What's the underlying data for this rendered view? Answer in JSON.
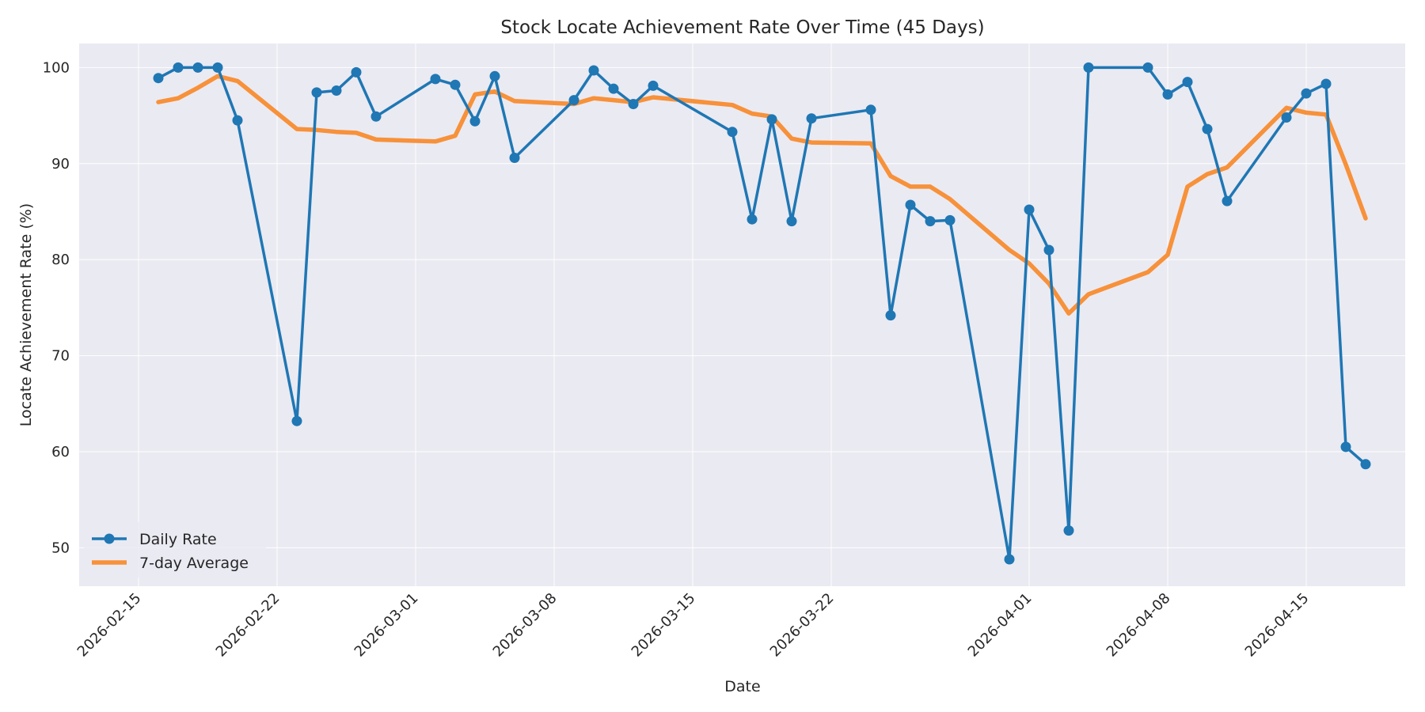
{
  "chart_data": {
    "type": "line",
    "title": "Stock Locate Achievement Rate Over Time (45 Days)",
    "xlabel": "Date",
    "ylabel": "Locate Achievement Rate (%)",
    "xlim": [
      "2026-02-12",
      "2026-04-20"
    ],
    "ylim": [
      46,
      102.5
    ],
    "yticks": [
      50,
      60,
      70,
      80,
      90,
      100
    ],
    "xticks": [
      "2026-02-15",
      "2026-02-22",
      "2026-03-01",
      "2026-03-08",
      "2026-03-15",
      "2026-03-22",
      "2026-04-01",
      "2026-04-08",
      "2026-04-15"
    ],
    "grid": true,
    "legend_position": "lower-left",
    "x": [
      "2026-02-16",
      "2026-02-17",
      "2026-02-18",
      "2026-02-19",
      "2026-02-20",
      "2026-02-23",
      "2026-02-24",
      "2026-02-25",
      "2026-02-26",
      "2026-02-27",
      "2026-03-02",
      "2026-03-03",
      "2026-03-04",
      "2026-03-05",
      "2026-03-06",
      "2026-03-09",
      "2026-03-10",
      "2026-03-11",
      "2026-03-12",
      "2026-03-13",
      "2026-03-17",
      "2026-03-18",
      "2026-03-19",
      "2026-03-20",
      "2026-03-21",
      "2026-03-24",
      "2026-03-25",
      "2026-03-26",
      "2026-03-27",
      "2026-03-28",
      "2026-03-31",
      "2026-04-01",
      "2026-04-02",
      "2026-04-03",
      "2026-04-04",
      "2026-04-07",
      "2026-04-08",
      "2026-04-09",
      "2026-04-10",
      "2026-04-11",
      "2026-04-14",
      "2026-04-15",
      "2026-04-16",
      "2026-04-17",
      "2026-04-18"
    ],
    "series": [
      {
        "name": "Daily Rate",
        "color": "#1f77b4",
        "marker": "circle",
        "values": [
          98.9,
          100,
          100,
          100,
          94.5,
          63.2,
          97.4,
          97.6,
          99.5,
          94.9,
          98.8,
          98.2,
          94.4,
          99.1,
          90.6,
          96.6,
          99.7,
          97.8,
          96.2,
          98.1,
          93.3,
          84.2,
          94.6,
          84.0,
          94.7,
          95.6,
          74.2,
          85.7,
          84.0,
          84.1,
          48.8,
          85.2,
          81.0,
          51.8,
          100,
          100,
          97.2,
          98.5,
          93.6,
          86.1,
          94.8,
          97.3,
          98.3,
          60.5,
          58.7
        ]
      },
      {
        "name": "7-day Average",
        "color": "#f7913a",
        "marker": "none",
        "values": [
          96.4,
          96.8,
          97.9,
          99.1,
          98.6,
          93.6,
          93.5,
          93.3,
          93.2,
          92.5,
          92.3,
          92.9,
          97.2,
          97.5,
          96.5,
          96.2,
          96.8,
          96.6,
          96.4,
          96.9,
          96.1,
          95.2,
          94.9,
          92.6,
          92.2,
          92.1,
          88.7,
          87.6,
          87.6,
          86.3,
          81.0,
          79.6,
          77.5,
          74.4,
          76.4,
          78.7,
          80.5,
          87.6,
          88.9,
          89.6,
          95.8,
          95.3,
          95.1,
          89.9,
          84.3
        ]
      }
    ]
  }
}
